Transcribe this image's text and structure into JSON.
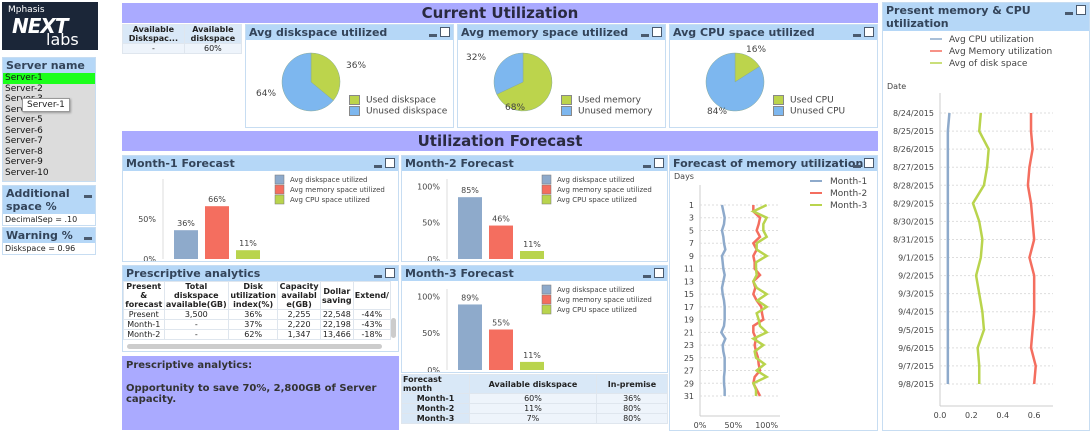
{
  "logo": {
    "company": "Mphasis",
    "product": "NEXT",
    "sub": "labs"
  },
  "sidebar": {
    "server_list": {
      "title": "Server name",
      "items": [
        "Server-1",
        "Server-2",
        "Server-3",
        "Server-4",
        "Server-5",
        "Server-6",
        "Server-7",
        "Server-8",
        "Server-9",
        "Server-10"
      ],
      "selected": "Server-1",
      "tooltip": "Server-1"
    },
    "additional_space": {
      "title": "Additional space %",
      "value": "DecimalSep  = .10"
    },
    "warning": {
      "title": "Warning %",
      "value": "Diskspace   = 0.96"
    }
  },
  "banners": {
    "current": "Current Utilization",
    "forecast": "Utilization Forecast"
  },
  "avail_table": {
    "headers": [
      "Available Diskspac...",
      "Available diskspace"
    ],
    "row": [
      "-",
      "60%"
    ]
  },
  "pies": [
    {
      "title": "Avg diskspace utilized",
      "used_label": "Used diskspace",
      "unused_label": "Unused diskspace",
      "used": 36,
      "unused": 64,
      "used_text": "36%",
      "unused_text": "64%"
    },
    {
      "title": "Avg memory space utilized",
      "used_label": "Used memory",
      "unused_label": "Unused memory",
      "used": 68,
      "unused": 32,
      "used_text": "68%",
      "unused_text": "32%"
    },
    {
      "title": "Avg CPU space utilized",
      "used_label": "Used CPU",
      "unused_label": "Unused CPU",
      "used": 16,
      "unused": 84,
      "used_text": "16%",
      "unused_text": "84%"
    }
  ],
  "colors": {
    "used": "#bcd44c",
    "unused": "#7db7ef",
    "disk": "#8eaacb",
    "memory": "#f46e5f",
    "cpu": "#b9d44d",
    "banner": "#aaaaff",
    "caption": "#b5d7f7",
    "selected": "#1bff1b"
  },
  "chart_data": [
    {
      "type": "bar",
      "title": "Month-1 Forecast",
      "categories": [
        "Avg diskspace utilized",
        "Avg memory space utilized",
        "Avg CPU space utilized"
      ],
      "values": [
        36,
        66,
        11
      ],
      "labels": [
        "36%",
        "66%",
        "11%"
      ],
      "yticks": [
        "0%",
        "50%"
      ],
      "ylim": [
        0,
        100
      ]
    },
    {
      "type": "bar",
      "title": "Month-2 Forecast",
      "categories": [
        "Avg diskspace utilized",
        "Avg memory space utilized",
        "Avg CPU space utilized"
      ],
      "values": [
        85,
        46,
        11
      ],
      "labels": [
        "85%",
        "46%",
        "11%"
      ],
      "yticks": [
        "0%",
        "50%",
        "100%"
      ],
      "ylim": [
        0,
        110
      ]
    },
    {
      "type": "bar",
      "title": "Month-3 Forecast",
      "categories": [
        "Avg diskspace utilized",
        "Avg memory space utilized",
        "Avg CPU space utilized"
      ],
      "values": [
        89,
        55,
        11
      ],
      "labels": [
        "89%",
        "55%",
        "11%"
      ],
      "yticks": [
        "0%",
        "50%",
        "100%"
      ],
      "ylim": [
        0,
        110
      ]
    },
    {
      "type": "line",
      "title": "Forecast of memory utilization",
      "ylabel": "Days",
      "y": [
        1,
        2,
        3,
        4,
        5,
        6,
        7,
        8,
        9,
        10,
        11,
        12,
        13,
        14,
        15,
        16,
        17,
        18,
        19,
        20,
        21,
        22,
        23,
        24,
        25,
        26,
        27,
        28,
        29,
        30,
        31
      ],
      "yticks": [
        "1",
        "3",
        "5",
        "7",
        "9",
        "11",
        "13",
        "15",
        "17",
        "19",
        "21",
        "23",
        "25",
        "27",
        "29",
        "31"
      ],
      "xticks": [
        "0%",
        "50%",
        "100%"
      ],
      "xlim": [
        0,
        120
      ],
      "series": [
        {
          "name": "Month-1",
          "values": [
            33,
            35,
            37,
            36,
            33,
            35,
            36,
            38,
            33,
            34,
            35,
            37,
            35,
            33,
            34,
            36,
            37,
            37,
            37,
            36,
            32,
            38,
            34,
            35,
            37,
            37,
            37,
            36,
            36,
            37,
            37
          ]
        },
        {
          "name": "Month-2",
          "values": [
            80,
            80,
            90,
            88,
            85,
            90,
            80,
            85,
            80,
            82,
            82,
            90,
            80,
            83,
            80,
            85,
            92,
            93,
            95,
            80,
            80,
            84,
            82,
            84,
            87,
            88,
            90,
            82,
            80,
            85,
            90
          ]
        },
        {
          "name": "Month-3",
          "values": [
            100,
            80,
            100,
            95,
            95,
            100,
            85,
            85,
            100,
            84,
            84,
            85,
            80,
            85,
            100,
            86,
            100,
            85,
            88,
            90,
            100,
            80,
            95,
            82,
            84,
            97,
            85,
            100,
            80,
            84,
            84
          ]
        }
      ]
    },
    {
      "type": "line",
      "title": "Present memory & CPU utilization",
      "ylabel": "Date",
      "y": [
        "8/24/2015",
        "8/25/2015",
        "8/26/2015",
        "8/27/2015",
        "8/28/2015",
        "8/29/2015",
        "8/30/2015",
        "8/31/2015",
        "9/1/2015",
        "9/2/2015",
        "9/3/2015",
        "9/4/2015",
        "9/5/2015",
        "9/6/2015",
        "9/7/2015",
        "9/8/2015"
      ],
      "xticks": [
        "0.0",
        "0.2",
        "0.4",
        "0.6"
      ],
      "xlim": [
        0,
        0.72
      ],
      "series": [
        {
          "name": "Avg CPU utilization",
          "values": [
            0.06,
            0.05,
            0.05,
            0.05,
            0.05,
            0.05,
            0.05,
            0.05,
            0.05,
            0.05,
            0.05,
            0.05,
            0.05,
            0.05,
            0.05,
            0.05
          ]
        },
        {
          "name": "Avg Memory utilization",
          "values": [
            0.58,
            0.58,
            0.59,
            0.57,
            0.56,
            0.58,
            0.59,
            0.6,
            0.57,
            0.6,
            0.6,
            0.6,
            0.59,
            0.58,
            0.61,
            0.6
          ]
        },
        {
          "name": "Avg of disk space",
          "values": [
            0.26,
            0.25,
            0.31,
            0.3,
            0.28,
            0.21,
            0.25,
            0.27,
            0.26,
            0.23,
            0.25,
            0.27,
            0.28,
            0.24,
            0.25,
            0.25
          ]
        }
      ]
    }
  ],
  "prescriptive": {
    "title": "Prescriptive analytics",
    "headers": [
      "Present & forecast",
      "Total diskspace available(GB)",
      "Disk utilization index(%)",
      "Capacity availabl e(GB)",
      "Dollar saving",
      "Extend/"
    ],
    "rows": [
      [
        "Present",
        "3,500",
        "36%",
        "2,255",
        "22,548",
        "-44%"
      ],
      [
        "Month-1",
        "-",
        "37%",
        "2,220",
        "22,198",
        "-43%"
      ],
      [
        "Month-2",
        "-",
        "62%",
        "1,347",
        "13,466",
        "-18%"
      ]
    ]
  },
  "message": {
    "line1": "Prescriptive analytics:",
    "line2": "Opportunity to save 70%, 2,800GB of Server capacity."
  },
  "forecast_table": {
    "headers": [
      "Forecast month",
      "Available diskspace",
      "In-premise"
    ],
    "rows": [
      [
        "Month-1",
        "60%",
        "36%"
      ],
      [
        "Month-2",
        "11%",
        "80%"
      ],
      [
        "Month-3",
        "7%",
        "80%"
      ]
    ]
  }
}
